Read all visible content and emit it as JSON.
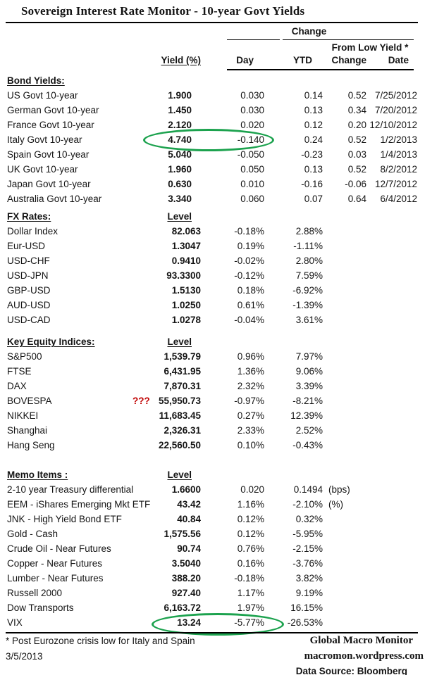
{
  "title": "Sovereign Interest Rate Monitor - 10-year Govt Yields",
  "header": {
    "change_label": "Change",
    "from_low_label": "From Low Yield *",
    "col_yield": "Yield (%)",
    "col_day": "Day",
    "col_ytd": "YTD",
    "col_change": "Change",
    "col_date": "Date"
  },
  "sections": [
    {
      "name": "Bond Yields:",
      "level_label": "",
      "rows": [
        {
          "label": "US Govt 10-year",
          "value": "1.900",
          "day": "0.030",
          "ytd": "0.14",
          "change": "0.52",
          "date": "7/25/2012"
        },
        {
          "label": "German Govt 10-year",
          "value": "1.450",
          "day": "0.030",
          "ytd": "0.13",
          "change": "0.34",
          "date": "7/20/2012"
        },
        {
          "label": "France Govt 10-year",
          "value": "2.120",
          "day": "0.020",
          "ytd": "0.12",
          "change": "0.20",
          "date": "12/10/2012"
        },
        {
          "label": "Italy Govt 10-year",
          "value": "4.740",
          "day": "-0.140",
          "ytd": "0.24",
          "change": "0.52",
          "date": "1/2/2013"
        },
        {
          "label": "Spain Govt 10-year",
          "value": "5.040",
          "day": "-0.050",
          "ytd": "-0.23",
          "change": "0.03",
          "date": "1/4/2013"
        },
        {
          "label": "UK Govt 10-year",
          "value": "1.960",
          "day": "0.050",
          "ytd": "0.13",
          "change": "0.52",
          "date": "8/2/2012"
        },
        {
          "label": "Japan Govt 10-year",
          "value": "0.630",
          "day": "0.010",
          "ytd": "-0.16",
          "change": "-0.06",
          "date": "12/7/2012"
        },
        {
          "label": "Australia Govt 10-year",
          "value": "3.340",
          "day": "0.060",
          "ytd": "0.07",
          "change": "0.64",
          "date": "6/4/2012"
        }
      ]
    },
    {
      "name": "FX Rates:",
      "level_label": "Level",
      "rows": [
        {
          "label": "Dollar Index",
          "value": "82.063",
          "day": "-0.18%",
          "ytd": "2.88%"
        },
        {
          "label": "Eur-USD",
          "value": "1.3047",
          "day": "0.19%",
          "ytd": "-1.11%"
        },
        {
          "label": "USD-CHF",
          "value": "0.9410",
          "day": "-0.02%",
          "ytd": "2.80%"
        },
        {
          "label": "USD-JPN",
          "value": "93.3300",
          "day": "-0.12%",
          "ytd": "7.59%"
        },
        {
          "label": "GBP-USD",
          "value": "1.5130",
          "day": "0.18%",
          "ytd": "-6.92%"
        },
        {
          "label": "AUD-USD",
          "value": "1.0250",
          "day": "0.61%",
          "ytd": "-1.39%"
        },
        {
          "label": "USD-CAD",
          "value": "1.0278",
          "day": "-0.04%",
          "ytd": "3.61%"
        }
      ]
    },
    {
      "name": "Key Equity Indices:",
      "level_label": "Level",
      "rows": [
        {
          "label": "S&P500",
          "value": "1,539.79",
          "day": "0.96%",
          "ytd": "7.97%"
        },
        {
          "label": "FTSE",
          "value": "6,431.95",
          "day": "1.36%",
          "ytd": "9.06%"
        },
        {
          "label": "DAX",
          "value": "7,870.31",
          "day": "2.32%",
          "ytd": "3.39%"
        },
        {
          "label": "BOVESPA",
          "value": "55,950.73",
          "day": "-0.97%",
          "ytd": "-8.21%",
          "flag": "???"
        },
        {
          "label": "NIKKEI",
          "value": "11,683.45",
          "day": "0.27%",
          "ytd": "12.39%"
        },
        {
          "label": "Shanghai",
          "value": "2,326.31",
          "day": "2.33%",
          "ytd": "2.52%"
        },
        {
          "label": "Hang Seng",
          "value": "22,560.50",
          "day": "0.10%",
          "ytd": "-0.43%"
        }
      ]
    },
    {
      "name": "Memo Items :",
      "level_label": "Level",
      "rows": [
        {
          "label": "2-10 year Treasury differential",
          "value": "1.6600",
          "day": "0.020",
          "ytd": "0.1494",
          "unit": "(bps)"
        },
        {
          "label": "EEM - iShares Emerging Mkt ETF",
          "value": "43.42",
          "day": "1.16%",
          "ytd": "-2.10%",
          "unit": "(%)"
        },
        {
          "label": "JNK - High Yield Bond ETF",
          "value": "40.84",
          "day": "0.12%",
          "ytd": "0.32%"
        },
        {
          "label": "Gold - Cash",
          "value": "1,575.56",
          "day": "0.12%",
          "ytd": "-5.95%"
        },
        {
          "label": "Crude Oil - Near Futures",
          "value": "90.74",
          "day": "0.76%",
          "ytd": "-2.15%"
        },
        {
          "label": "Copper - Near Futures",
          "value": "3.5040",
          "day": "0.16%",
          "ytd": "-3.76%"
        },
        {
          "label": "Lumber - Near Futures",
          "value": "388.20",
          "day": "-0.18%",
          "ytd": "3.82%"
        },
        {
          "label": "Russell 2000",
          "value": "927.40",
          "day": "1.17%",
          "ytd": "9.19%"
        },
        {
          "label": "Dow Transports",
          "value": "6,163.72",
          "day": "1.97%",
          "ytd": "16.15%"
        },
        {
          "label": "VIX",
          "value": "13.24",
          "day": "-5.77%",
          "ytd": "-26.53%"
        }
      ]
    }
  ],
  "footer": {
    "note": "*  Post Eurozone crisis low for Italy and Spain",
    "date": "3/5/2013",
    "brand_line1": "Global Macro Monitor",
    "brand_line2": "macromon.wordpress.com",
    "brand_line3": "Data Source:  Bloomberg"
  },
  "colors": {
    "highlight_green": "#1CA24E",
    "flag_red": "#C00000",
    "text": "#141414"
  }
}
